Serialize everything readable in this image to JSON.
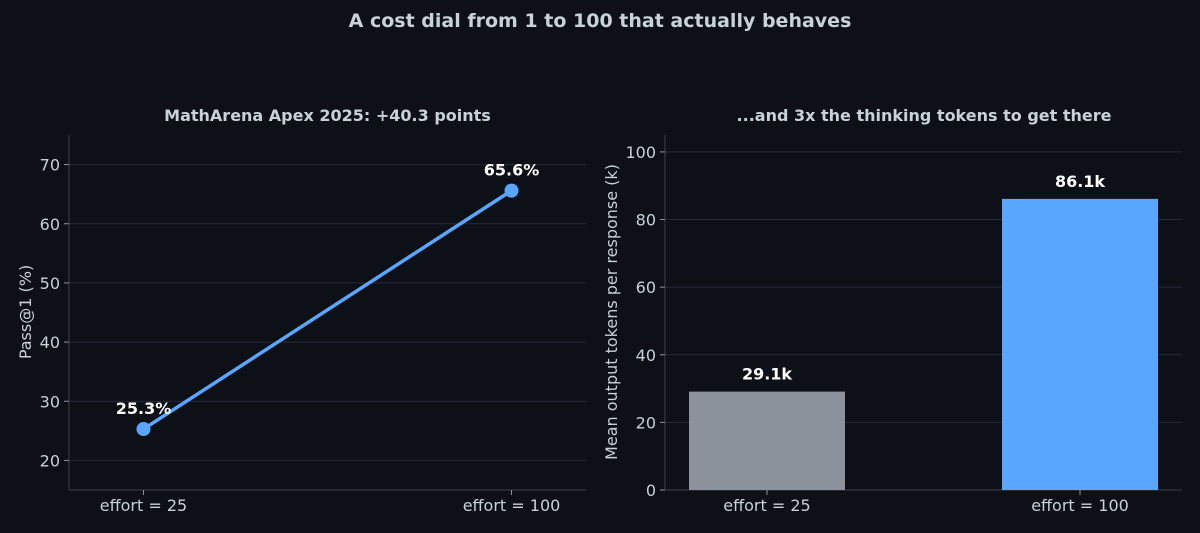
{
  "figure_title": "A cost dial from 1 to 100 that actually behaves",
  "chart_data": [
    {
      "type": "line",
      "title": "MathArena Apex 2025: +40.3 points",
      "xlabel": "",
      "ylabel": "Pass@1 (%)",
      "categories": [
        "effort = 25",
        "effort = 100"
      ],
      "series": [
        {
          "values": [
            25.3,
            65.6
          ],
          "color": "#58a6ff"
        }
      ],
      "data_labels": [
        "25.3%",
        "65.6%"
      ],
      "ylim": [
        15,
        75
      ],
      "yticks": [
        20,
        30,
        40,
        50,
        60,
        70
      ],
      "grid": true
    },
    {
      "type": "bar",
      "title": "...and 3x the thinking tokens to get there",
      "xlabel": "",
      "ylabel": "Mean output tokens per response (k)",
      "categories": [
        "effort = 25",
        "effort = 100"
      ],
      "values": [
        29.1,
        86.1
      ],
      "colors": [
        "#8b929c",
        "#58a6ff"
      ],
      "data_labels": [
        "29.1k",
        "86.1k"
      ],
      "ylim": [
        0,
        105
      ],
      "yticks": [
        0,
        20,
        40,
        60,
        80,
        100
      ],
      "grid": true
    }
  ]
}
